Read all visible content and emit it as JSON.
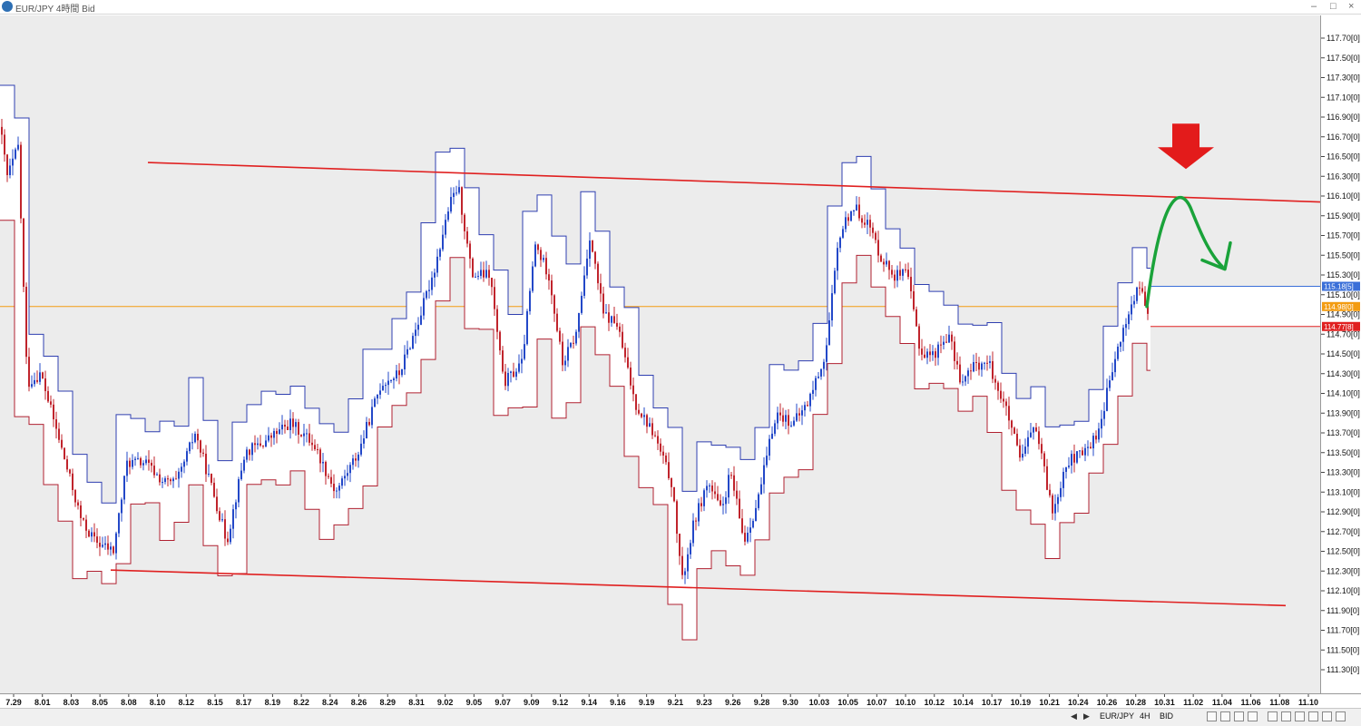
{
  "window": {
    "title": "EUR/JPY 4時間 Bid"
  },
  "statusbar": {
    "symbol": "EUR/JPY",
    "timeframe": "4H",
    "side": "BID"
  },
  "chart_data": {
    "type": "candlestick",
    "title": "EUR/JPY 4時間 Bid",
    "y_axis": {
      "range": [
        111.2,
        117.85
      ],
      "tick_labels": [
        "117.70[0]",
        "117.50[0]",
        "117.30[0]",
        "117.10[0]",
        "116.90[0]",
        "116.70[0]",
        "116.50[0]",
        "116.30[0]",
        "116.10[0]",
        "115.90[0]",
        "115.70[0]",
        "115.50[0]",
        "115.30[0]",
        "115.10[0]",
        "114.90[0]",
        "114.70[0]",
        "114.50[0]",
        "114.30[0]",
        "114.10[0]",
        "113.90[0]",
        "113.70[0]",
        "113.50[0]",
        "113.30[0]",
        "113.10[0]",
        "112.90[0]",
        "112.70[0]",
        "112.50[0]",
        "112.30[0]",
        "112.10[0]",
        "111.90[0]",
        "111.70[0]",
        "111.50[0]",
        "111.30[0]"
      ]
    },
    "x_axis": {
      "tick_labels": [
        "7.29",
        "8.01",
        "8.03",
        "8.05",
        "8.08",
        "8.10",
        "8.12",
        "8.15",
        "8.17",
        "8.19",
        "8.22",
        "8.24",
        "8.26",
        "8.29",
        "8.31",
        "9.02",
        "9.05",
        "9.07",
        "9.09",
        "9.12",
        "9.14",
        "9.16",
        "9.19",
        "9.21",
        "9.23",
        "9.26",
        "9.28",
        "9.30",
        "10.03",
        "10.05",
        "10.07",
        "10.10",
        "10.12",
        "10.14",
        "10.17",
        "10.19",
        "10.21",
        "10.24",
        "10.26",
        "10.28",
        "10.31",
        "11.02",
        "11.04",
        "11.06",
        "11.08",
        "11.10"
      ]
    },
    "price_markers": [
      {
        "label": "115.18[5]",
        "value": 115.185,
        "color": "#3a6fd8"
      },
      {
        "label": "114.98[0]",
        "value": 114.98,
        "color": "#f39c12"
      },
      {
        "label": "114.77[8]",
        "value": 114.778,
        "color": "#e02020"
      }
    ],
    "price_path": [
      [
        0,
        116.8
      ],
      [
        8,
        116.3
      ],
      [
        20,
        116.6
      ],
      [
        30,
        114.2
      ],
      [
        45,
        114.3
      ],
      [
        60,
        113.8
      ],
      [
        75,
        113.3
      ],
      [
        90,
        112.8
      ],
      [
        105,
        112.6
      ],
      [
        125,
        112.5
      ],
      [
        140,
        113.4
      ],
      [
        160,
        113.4
      ],
      [
        180,
        113.2
      ],
      [
        195,
        113.2
      ],
      [
        215,
        113.7
      ],
      [
        235,
        113.1
      ],
      [
        250,
        112.6
      ],
      [
        270,
        113.5
      ],
      [
        290,
        113.6
      ],
      [
        320,
        113.8
      ],
      [
        345,
        113.6
      ],
      [
        370,
        113.1
      ],
      [
        395,
        113.5
      ],
      [
        420,
        114.2
      ],
      [
        440,
        114.3
      ],
      [
        460,
        114.8
      ],
      [
        480,
        115.4
      ],
      [
        495,
        116.0
      ],
      [
        505,
        116.2
      ],
      [
        520,
        115.3
      ],
      [
        540,
        115.3
      ],
      [
        555,
        114.2
      ],
      [
        575,
        114.4
      ],
      [
        590,
        115.6
      ],
      [
        605,
        115.3
      ],
      [
        620,
        114.4
      ],
      [
        635,
        114.7
      ],
      [
        650,
        115.7
      ],
      [
        665,
        114.9
      ],
      [
        680,
        114.8
      ],
      [
        700,
        114.0
      ],
      [
        720,
        113.7
      ],
      [
        740,
        113.2
      ],
      [
        752,
        112.2
      ],
      [
        765,
        112.8
      ],
      [
        780,
        113.2
      ],
      [
        795,
        112.9
      ],
      [
        805,
        113.3
      ],
      [
        820,
        112.6
      ],
      [
        835,
        113.0
      ],
      [
        855,
        113.9
      ],
      [
        875,
        113.8
      ],
      [
        890,
        114.0
      ],
      [
        910,
        114.5
      ],
      [
        925,
        115.7
      ],
      [
        940,
        116.0
      ],
      [
        958,
        115.8
      ],
      [
        970,
        115.5
      ],
      [
        985,
        115.3
      ],
      [
        1000,
        115.3
      ],
      [
        1015,
        114.5
      ],
      [
        1030,
        114.5
      ],
      [
        1045,
        114.7
      ],
      [
        1060,
        114.2
      ],
      [
        1075,
        114.4
      ],
      [
        1090,
        114.4
      ],
      [
        1110,
        113.9
      ],
      [
        1125,
        113.4
      ],
      [
        1140,
        113.8
      ],
      [
        1160,
        112.9
      ],
      [
        1175,
        113.4
      ],
      [
        1195,
        113.5
      ],
      [
        1210,
        113.7
      ],
      [
        1225,
        114.3
      ],
      [
        1240,
        114.8
      ],
      [
        1255,
        115.2
      ],
      [
        1265,
        114.9
      ]
    ],
    "trend_lines": [
      {
        "name": "resistance",
        "color": "#e02020",
        "points": [
          [
            "7.31",
            116.44
          ],
          [
            "11.10",
            116.04
          ]
        ]
      },
      {
        "name": "support",
        "color": "#e02020",
        "points": [
          [
            "8.05",
            112.31
          ],
          [
            "11.08",
            111.95
          ]
        ]
      }
    ],
    "annotations": [
      {
        "type": "down-arrow",
        "color": "#e31b1b",
        "near_value": 116.3
      },
      {
        "type": "forecast-curve",
        "color": "#1aa33a",
        "peak_value": 116.03
      }
    ],
    "grid": false,
    "legend": "none"
  }
}
